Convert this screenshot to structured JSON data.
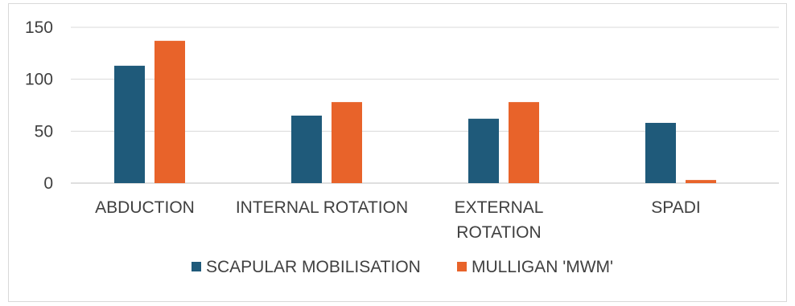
{
  "chart_data": {
    "type": "bar",
    "categories": [
      "ABDUCTION",
      "INTERNAL ROTATION",
      "EXTERNAL ROTATION",
      "SPADI"
    ],
    "category_lines": [
      [
        "ABDUCTION"
      ],
      [
        "INTERNAL ROTATION"
      ],
      [
        "EXTERNAL",
        "ROTATION"
      ],
      [
        "SPADI"
      ]
    ],
    "series": [
      {
        "name": "SCAPULAR MOBILISATION",
        "values": [
          113,
          65,
          62,
          58
        ],
        "color": "#1f5a7a"
      },
      {
        "name": "MULLIGAN 'MWM'",
        "values": [
          137,
          78,
          78,
          3
        ],
        "color": "#e8632a"
      }
    ],
    "ylim": [
      0,
      150
    ],
    "yticks": [
      0,
      50,
      100,
      150
    ],
    "grid": true,
    "legend_position": "bottom",
    "title": "",
    "xlabel": "",
    "ylabel": ""
  }
}
